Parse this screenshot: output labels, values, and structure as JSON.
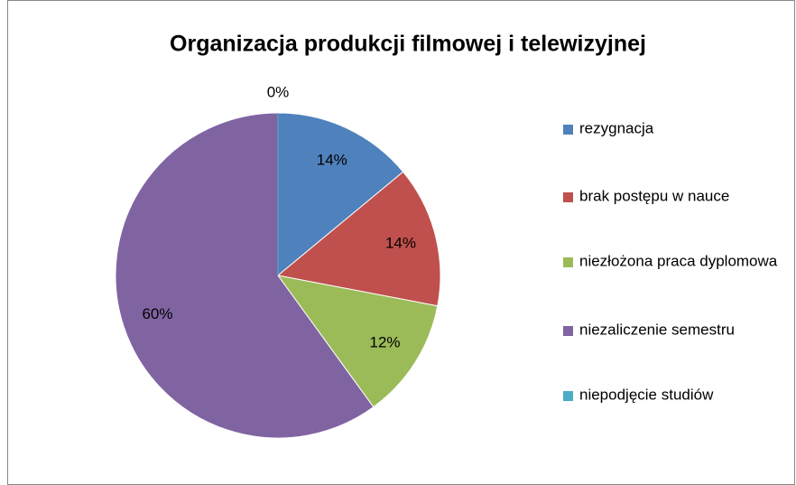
{
  "chart_data": {
    "type": "pie",
    "title": "Organizacja produkcji filmowej  i telewizyjnej",
    "categories": [
      "rezygnacja",
      "brak postępu w nauce",
      "niezłożona praca dyplomowa",
      "niezaliczenie semestru",
      "niepodjęcie studiów"
    ],
    "values": [
      14,
      14,
      12,
      60,
      0
    ],
    "value_labels": [
      "14%",
      "14%",
      "12%",
      "60%",
      "0%"
    ],
    "colors": [
      "#4f81bd",
      "#c0504d",
      "#9bbb59",
      "#8064a2",
      "#4bacc6"
    ],
    "legend": "right"
  }
}
